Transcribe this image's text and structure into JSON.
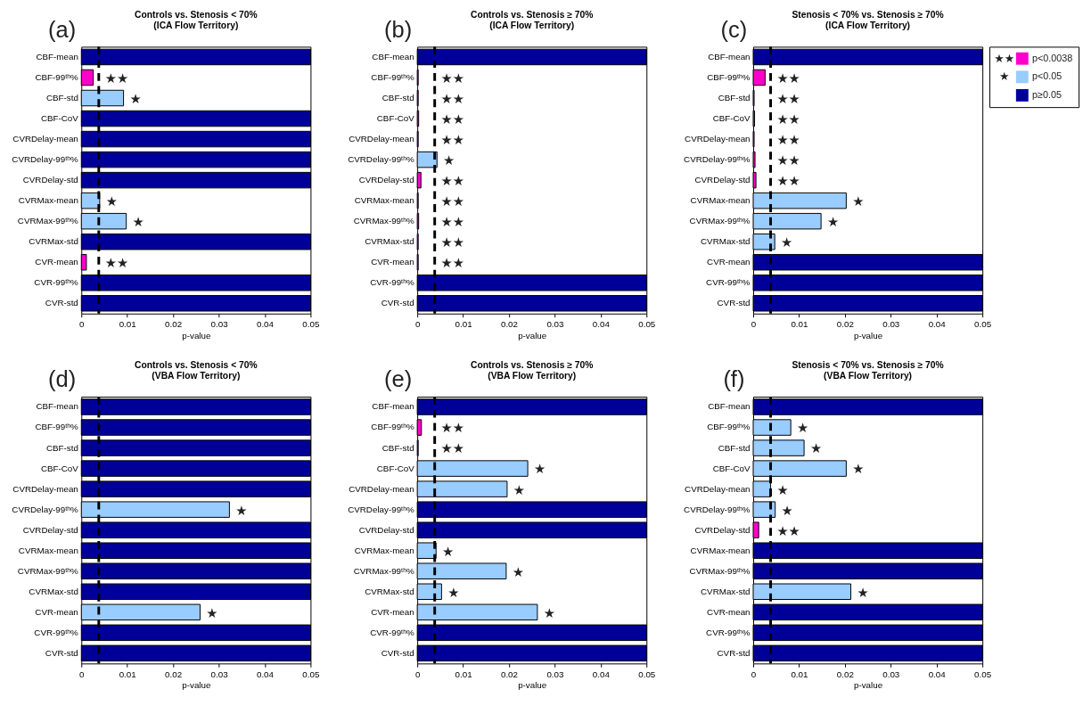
{
  "chart_data": [
    {
      "type": "bar",
      "orientation": "horizontal",
      "title": "Controls vs. Stenosis < 70%",
      "subtitle": "(ICA Flow Territory)",
      "xlabel": "p-value",
      "categories": [
        "CBF-mean",
        "CBF-99ᵗʰ%",
        "CBF-std",
        "CBF-CoV",
        "CVRDelay-mean",
        "CVRDelay-99ᵗʰ%",
        "CVRDelay-std",
        "CVRMax-mean",
        "CVRMax-99ᵗʰ%",
        "CVRMax-std",
        "CVR-mean",
        "CVR-99ᵗʰ%",
        "CVR-std"
      ],
      "values": [
        0.05,
        0.0026,
        0.0092,
        0.05,
        0.05,
        0.05,
        0.05,
        0.004,
        0.0098,
        0.05,
        0.0011,
        0.05,
        0.05
      ],
      "colors": [
        "#000099",
        "#ff00cc",
        "#99ccff",
        "#000099",
        "#000099",
        "#000099",
        "#000099",
        "#99ccff",
        "#99ccff",
        "#000099",
        "#ff00cc",
        "#000099",
        "#000099"
      ],
      "xlim": [
        0,
        0.05
      ],
      "xticks": [
        0,
        0.01,
        0.02,
        0.03,
        0.04,
        0.05
      ],
      "ref_lines": [
        {
          "axis": "x",
          "value": 0.0038,
          "color": "#000000",
          "line_style": "dashed"
        }
      ],
      "annotations": [
        "(a)",
        {
          "text": "★★",
          "x": 0.0026,
          "y": "CBF-99ᵗʰ%"
        },
        {
          "text": "★",
          "x": 0.0092,
          "y": "CBF-std"
        },
        {
          "text": "★",
          "x": 0.004,
          "y": "CVRMax-mean"
        },
        {
          "text": "★",
          "x": 0.0098,
          "y": "CVRMax-99ᵗʰ%"
        },
        {
          "text": "★★",
          "x": 0.0011,
          "y": "CVR-mean"
        }
      ]
    },
    {
      "type": "bar",
      "orientation": "horizontal",
      "title": "Controls vs. Stenosis ≥ 70%",
      "subtitle": "(ICA Flow Territory)",
      "xlabel": "p-value",
      "categories": [
        "CBF-mean",
        "CBF-99ᵗʰ%",
        "CBF-std",
        "CBF-CoV",
        "CVRDelay-mean",
        "CVRDelay-99ᵗʰ%",
        "CVRDelay-std",
        "CVRMax-mean",
        "CVRMax-99ᵗʰ%",
        "CVRMax-std",
        "CVR-mean",
        "CVR-99ᵗʰ%",
        "CVR-std"
      ],
      "values": [
        0.05,
        0.0002,
        0.0002,
        0.0003,
        0.0002,
        0.0043,
        0.0008,
        0.0002,
        0.0003,
        0.0002,
        0.0002,
        0.05,
        0.05
      ],
      "colors": [
        "#000099",
        "#ff00cc",
        "#ff00cc",
        "#ff00cc",
        "#ff00cc",
        "#99ccff",
        "#ff00cc",
        "#ff00cc",
        "#ff00cc",
        "#ff00cc",
        "#ff00cc",
        "#000099",
        "#000099"
      ],
      "xlim": [
        0,
        0.05
      ],
      "xticks": [
        0,
        0.01,
        0.02,
        0.03,
        0.04,
        0.05
      ],
      "ref_lines": [
        {
          "axis": "x",
          "value": 0.0038,
          "color": "#000000",
          "line_style": "dashed"
        }
      ],
      "annotations": [
        "(b)",
        {
          "text": "★★",
          "x": 0.0002,
          "y": "CBF-99ᵗʰ%"
        },
        {
          "text": "★★",
          "x": 0.0002,
          "y": "CBF-std"
        },
        {
          "text": "★★",
          "x": 0.0003,
          "y": "CBF-CoV"
        },
        {
          "text": "★★",
          "x": 0.0002,
          "y": "CVRDelay-mean"
        },
        {
          "text": "★",
          "x": 0.0043,
          "y": "CVRDelay-99ᵗʰ%"
        },
        {
          "text": "★★",
          "x": 0.0008,
          "y": "CVRDelay-std"
        },
        {
          "text": "★★",
          "x": 0.0002,
          "y": "CVRMax-mean"
        },
        {
          "text": "★★",
          "x": 0.0003,
          "y": "CVRMax-99ᵗʰ%"
        },
        {
          "text": "★★",
          "x": 0.0002,
          "y": "CVRMax-std"
        },
        {
          "text": "★★",
          "x": 0.0002,
          "y": "CVR-mean"
        }
      ]
    },
    {
      "type": "bar",
      "orientation": "horizontal",
      "title": "Stenosis < 70% vs. Stenosis ≥ 70%",
      "subtitle": "(ICA Flow Territory)",
      "xlabel": "p-value",
      "categories": [
        "CBF-mean",
        "CBF-99ᵗʰ%",
        "CBF-std",
        "CBF-CoV",
        "CVRDelay-mean",
        "CVRDelay-99ᵗʰ%",
        "CVRDelay-std",
        "CVRMax-mean",
        "CVRMax-99ᵗʰ%",
        "CVRMax-std",
        "CVR-mean",
        "CVR-99ᵗʰ%",
        "CVR-std"
      ],
      "series": [
        {
          "name": "p<0.0038",
          "color": "#ff00cc",
          "values": [
            null,
            0.0026,
            0.0002,
            0.0003,
            0.0002,
            0.0004,
            0.0006,
            null,
            null,
            null,
            null,
            null,
            null
          ]
        },
        {
          "name": "p<0.05",
          "color": "#99ccff",
          "values": [
            null,
            null,
            null,
            null,
            null,
            null,
            null,
            0.0203,
            0.0148,
            0.0047,
            null,
            null,
            null
          ]
        },
        {
          "name": "p≥0.05",
          "color": "#000099",
          "values": [
            0.05,
            null,
            null,
            null,
            null,
            null,
            null,
            null,
            null,
            null,
            0.05,
            0.05,
            0.05
          ]
        }
      ],
      "legend": "top right",
      "xlim": [
        0,
        0.05
      ],
      "xticks": [
        0,
        0.01,
        0.02,
        0.03,
        0.04,
        0.05
      ],
      "ref_lines": [
        {
          "axis": "x",
          "value": 0.0038,
          "color": "#000000",
          "line_style": "dashed"
        }
      ],
      "annotations": [
        "(c)",
        "★★",
        "★",
        {
          "text": "★★",
          "x": 0.0026,
          "y": "CBF-99ᵗʰ%"
        },
        {
          "text": "★★",
          "x": 0.0002,
          "y": "CBF-std"
        },
        {
          "text": "★★",
          "x": 0.0003,
          "y": "CBF-CoV"
        },
        {
          "text": "★★",
          "x": 0.0002,
          "y": "CVRDelay-mean"
        },
        {
          "text": "★★",
          "x": 0.0004,
          "y": "CVRDelay-99ᵗʰ%"
        },
        {
          "text": "★★",
          "x": 0.0006,
          "y": "CVRDelay-std"
        },
        {
          "text": "★",
          "x": 0.0203,
          "y": "CVRMax-mean"
        },
        {
          "text": "★",
          "x": 0.0148,
          "y": "CVRMax-99ᵗʰ%"
        },
        {
          "text": "★",
          "x": 0.0047,
          "y": "CVRMax-std"
        }
      ]
    },
    {
      "type": "bar",
      "orientation": "horizontal",
      "title": "Controls vs. Stenosis < 70%",
      "subtitle": "(VBA Flow Territory)",
      "xlabel": "p-value",
      "categories": [
        "CBF-mean",
        "CBF-99ᵗʰ%",
        "CBF-std",
        "CBF-CoV",
        "CVRDelay-mean",
        "CVRDelay-99ᵗʰ%",
        "CVRDelay-std",
        "CVRMax-mean",
        "CVRMax-99ᵗʰ%",
        "CVRMax-std",
        "CVR-mean",
        "CVR-99ᵗʰ%",
        "CVR-std"
      ],
      "values": [
        0.05,
        0.05,
        0.05,
        0.05,
        0.05,
        0.0323,
        0.05,
        0.05,
        0.05,
        0.05,
        0.0259,
        0.05,
        0.05
      ],
      "colors": [
        "#000099",
        "#000099",
        "#000099",
        "#000099",
        "#000099",
        "#99ccff",
        "#000099",
        "#000099",
        "#000099",
        "#000099",
        "#99ccff",
        "#000099",
        "#000099"
      ],
      "xlim": [
        0,
        0.05
      ],
      "xticks": [
        0,
        0.01,
        0.02,
        0.03,
        0.04,
        0.05
      ],
      "ref_lines": [
        {
          "axis": "x",
          "value": 0.0038,
          "color": "#000000",
          "line_style": "dashed"
        }
      ],
      "annotations": [
        "(d)",
        {
          "text": "★",
          "x": 0.0323,
          "y": "CVRDelay-99ᵗʰ%"
        },
        {
          "text": "★",
          "x": 0.0259,
          "y": "CVR-mean"
        }
      ]
    },
    {
      "type": "bar",
      "orientation": "horizontal",
      "title": "Controls vs. Stenosis ≥ 70%",
      "subtitle": "(VBA Flow Territory)",
      "xlabel": "p-value",
      "categories": [
        "CBF-mean",
        "CBF-99ᵗʰ%",
        "CBF-std",
        "CBF-CoV",
        "CVRDelay-mean",
        "CVRDelay-99ᵗʰ%",
        "CVRDelay-std",
        "CVRMax-mean",
        "CVRMax-99ᵗʰ%",
        "CVRMax-std",
        "CVR-mean",
        "CVR-99ᵗʰ%",
        "CVR-std"
      ],
      "values": [
        0.05,
        0.0009,
        0.0002,
        0.0241,
        0.0196,
        0.05,
        0.05,
        0.0041,
        0.0194,
        0.0053,
        0.0262,
        0.05,
        0.05
      ],
      "colors": [
        "#000099",
        "#ff00cc",
        "#ff00cc",
        "#99ccff",
        "#99ccff",
        "#000099",
        "#000099",
        "#99ccff",
        "#99ccff",
        "#99ccff",
        "#99ccff",
        "#000099",
        "#000099"
      ],
      "xlim": [
        0,
        0.05
      ],
      "xticks": [
        0,
        0.01,
        0.02,
        0.03,
        0.04,
        0.05
      ],
      "ref_lines": [
        {
          "axis": "x",
          "value": 0.0038,
          "color": "#000000",
          "line_style": "dashed"
        }
      ],
      "annotations": [
        "(e)",
        {
          "text": "★★",
          "x": 0.0009,
          "y": "CBF-99ᵗʰ%"
        },
        {
          "text": "★★",
          "x": 0.0002,
          "y": "CBF-std"
        },
        {
          "text": "★",
          "x": 0.0241,
          "y": "CBF-CoV"
        },
        {
          "text": "★",
          "x": 0.0196,
          "y": "CVRDelay-mean"
        },
        {
          "text": "★",
          "x": 0.0041,
          "y": "CVRMax-mean"
        },
        {
          "text": "★",
          "x": 0.0194,
          "y": "CVRMax-99ᵗʰ%"
        },
        {
          "text": "★",
          "x": 0.0053,
          "y": "CVRMax-std"
        },
        {
          "text": "★",
          "x": 0.0262,
          "y": "CVR-mean"
        }
      ]
    },
    {
      "type": "bar",
      "orientation": "horizontal",
      "title": "Stenosis < 70% vs. Stenosis ≥ 70%",
      "subtitle": "(VBA Flow Territory)",
      "xlabel": "p-value",
      "categories": [
        "CBF-mean",
        "CBF-99ᵗʰ%",
        "CBF-std",
        "CBF-CoV",
        "CVRDelay-mean",
        "CVRDelay-99ᵗʰ%",
        "CVRDelay-std",
        "CVRMax-mean",
        "CVRMax-99ᵗʰ%",
        "CVRMax-std",
        "CVR-mean",
        "CVR-99ᵗʰ%",
        "CVR-std"
      ],
      "values": [
        0.05,
        0.0082,
        0.0111,
        0.0203,
        0.0038,
        0.0048,
        0.0012,
        0.05,
        0.05,
        0.0213,
        0.05,
        0.05,
        0.05
      ],
      "colors": [
        "#000099",
        "#99ccff",
        "#99ccff",
        "#99ccff",
        "#99ccff",
        "#99ccff",
        "#ff00cc",
        "#000099",
        "#000099",
        "#99ccff",
        "#000099",
        "#000099",
        "#000099"
      ],
      "xlim": [
        0,
        0.05
      ],
      "xticks": [
        0,
        0.01,
        0.02,
        0.03,
        0.04,
        0.05
      ],
      "ref_lines": [
        {
          "axis": "x",
          "value": 0.0038,
          "color": "#000000",
          "line_style": "dashed"
        }
      ],
      "annotations": [
        "(f)",
        {
          "text": "★",
          "x": 0.0082,
          "y": "CBF-99ᵗʰ%"
        },
        {
          "text": "★",
          "x": 0.0111,
          "y": "CBF-std"
        },
        {
          "text": "★",
          "x": 0.0203,
          "y": "CBF-CoV"
        },
        {
          "text": "★",
          "x": 0.0038,
          "y": "CVRDelay-mean"
        },
        {
          "text": "★",
          "x": 0.0048,
          "y": "CVRDelay-99ᵗʰ%"
        },
        {
          "text": "★★",
          "x": 0.0012,
          "y": "CVRDelay-std"
        },
        {
          "text": "★",
          "x": 0.0213,
          "y": "CVRMax-std"
        }
      ]
    }
  ]
}
